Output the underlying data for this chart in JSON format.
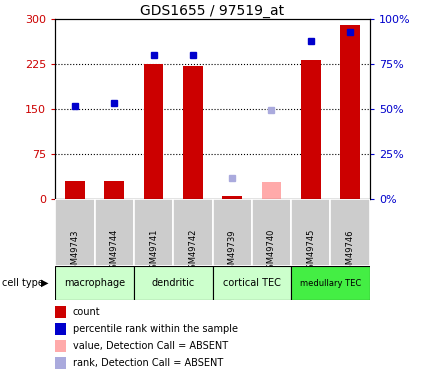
{
  "title": "GDS1655 / 97519_at",
  "samples": [
    "GSM49743",
    "GSM49744",
    "GSM49741",
    "GSM49742",
    "GSM49739",
    "GSM49740",
    "GSM49745",
    "GSM49746"
  ],
  "cell_types": [
    {
      "label": "macrophage",
      "start": 0,
      "end": 2
    },
    {
      "label": "dendritic",
      "start": 2,
      "end": 4
    },
    {
      "label": "cortical TEC",
      "start": 4,
      "end": 6
    },
    {
      "label": "medullary TEC",
      "start": 6,
      "end": 8
    }
  ],
  "count_values": [
    30,
    30,
    225,
    222,
    5,
    null,
    232,
    290
  ],
  "rank_values": [
    155,
    160,
    240,
    240,
    null,
    null,
    263,
    278
  ],
  "absent_count": [
    null,
    null,
    null,
    null,
    null,
    28,
    null,
    null
  ],
  "absent_rank": [
    null,
    null,
    null,
    null,
    35,
    148,
    null,
    null
  ],
  "ylim_left": [
    0,
    300
  ],
  "ylim_right": [
    0,
    100
  ],
  "yticks_left": [
    0,
    75,
    150,
    225,
    300
  ],
  "ytick_labels_left": [
    "0",
    "75",
    "150",
    "225",
    "300"
  ],
  "yticks_right_pct": [
    0,
    25,
    50,
    75,
    100
  ],
  "ytick_labels_right": [
    "0%",
    "25%",
    "50%",
    "75%",
    "100%"
  ],
  "red_color": "#cc0000",
  "blue_color": "#0000cc",
  "pink_color": "#ffaaaa",
  "light_blue_color": "#aaaadd",
  "tick_color_left": "#cc0000",
  "tick_color_right": "#0000cc",
  "cell_bg": "#cccccc",
  "cell_bg_edge": "#ffffff",
  "cell_type_colors": [
    "#ccffcc",
    "#ccffcc",
    "#ccffcc",
    "#44ee44"
  ],
  "hgrid_color": "black",
  "hgrid_style": "dotted",
  "hgrid_vals": [
    75,
    150,
    225
  ],
  "bar_width": 0.5,
  "marker_size": 5
}
